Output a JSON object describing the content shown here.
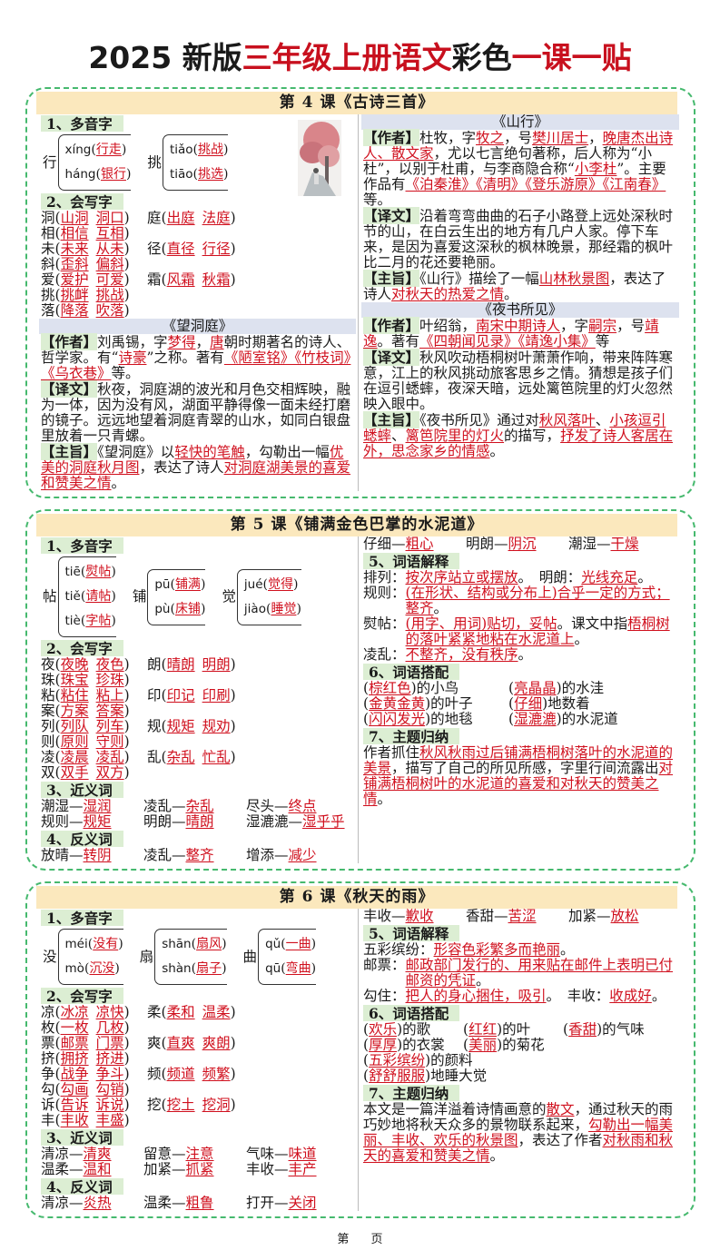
{
  "title": {
    "parts": [
      {
        "text": "2025 新版",
        "red": false
      },
      {
        "text": "三年级上册语文",
        "red": true
      },
      {
        "text": "彩色",
        "red": false
      },
      {
        "text": "一课一贴",
        "red": true
      }
    ]
  },
  "colors": {
    "accent_red": "#d0101e",
    "border_green": "#46b96e",
    "header_yellow": "#fbe8bd",
    "label_green": "#dceed3",
    "poem_bar_blue": "#dde2ef"
  },
  "lessons": [
    {
      "header": "第 4 课《古诗三首》",
      "image": "autumn-maple-painting",
      "left": [
        {
          "type": "h",
          "text": "1、多音字"
        },
        {
          "type": "poly",
          "groups": [
            {
              "char": "行",
              "items": [
                {
                  "py": "xíng",
                  "w": "行走"
                },
                {
                  "py": "háng",
                  "w": "银行"
                }
              ]
            },
            {
              "char": "挑",
              "items": [
                {
                  "py": "tiǎo",
                  "w": "挑战"
                },
                {
                  "py": "tiāo",
                  "w": "挑选"
                }
              ]
            }
          ]
        },
        {
          "type": "h",
          "text": "2、会写字"
        },
        {
          "type": "grid",
          "rows": [
            [
              [
                "洞",
                "山洞",
                "洞口"
              ],
              [
                "庭",
                "出庭",
                "法庭"
              ],
              [
                "相",
                "相信",
                "互相"
              ]
            ],
            [
              [
                "未",
                "未来",
                "从未"
              ],
              [
                "径",
                "直径",
                "行径"
              ],
              [
                "斜",
                "歪斜",
                "偏斜"
              ]
            ],
            [
              [
                "爱",
                "爱护",
                "可爱"
              ],
              [
                "霜",
                "风霜",
                "秋霜"
              ],
              [
                "挑",
                "挑衅",
                "挑战"
              ]
            ],
            [
              [
                "落",
                "降落",
                "吹落"
              ]
            ]
          ]
        },
        {
          "type": "poem",
          "text": "《望洞庭》"
        },
        {
          "type": "tagpara",
          "tag": "【作者】",
          "segs": [
            "刘禹锡，字",
            "梦得",
            "，",
            "唐",
            "朝时期著名的诗人、哲学家。有“",
            "诗豪",
            "”之称。著有",
            "《陋室铭》《竹枝词》《乌衣巷》",
            "等。"
          ]
        },
        {
          "type": "tagpara",
          "tag": "【译文】",
          "segs": [
            "秋夜，洞庭湖的波光和月色交相辉映，融为一体，因为没有风，湖面平静得像一面未经打磨的镜子。远远地望着洞庭青翠的山水，如同白银盘里放着一只青螺。"
          ]
        },
        {
          "type": "tagpara",
          "tag": "【主旨】",
          "segs": [
            "《望洞庭》以",
            "轻快的笔触",
            "，勾勒出一幅",
            "优美的洞庭秋月图",
            "，表达了诗人",
            "对洞庭湖美景的喜爱和赞美之情",
            "。"
          ]
        }
      ],
      "right": [
        {
          "type": "poem",
          "text": "《山行》"
        },
        {
          "type": "tagpara",
          "tag": "【作者】",
          "segs": [
            "杜牧，字",
            "牧之",
            "，号",
            "樊川居士",
            "，",
            "晚唐杰出诗人、散文家",
            "，尤以七言绝句著称，后人称为“小杜”，以别于杜甫，与李商隐合称“",
            "小李杜",
            "”。主要作品有",
            "《泊秦淮》《清明》《登乐游原》《江南春》",
            "等。"
          ]
        },
        {
          "type": "tagpara",
          "tag": "【译文】",
          "segs": [
            "沿着弯弯曲曲的石子小路登上远处深秋时节的山，在白云生出的地方有几户人家。停下车来，是因为喜爱这深秋的枫林晚景，那经霜的枫叶比二月的花还要艳丽。"
          ]
        },
        {
          "type": "tagpara",
          "tag": "【主旨】",
          "segs": [
            "《山行》描绘了一幅",
            "山林秋景图",
            "，表达了诗人",
            "对秋天的热爱之情",
            "。"
          ]
        },
        {
          "type": "poem",
          "text": "《夜书所见》"
        },
        {
          "type": "tagpara",
          "tag": "【作者】",
          "segs": [
            "叶绍翁，",
            "南宋中期诗人",
            "，字",
            "嗣宗",
            "，号",
            "靖逸",
            "。著有",
            "《四朝闻见录》《靖逸小集》",
            "等"
          ]
        },
        {
          "type": "tagpara",
          "tag": "【译文】",
          "segs": [
            "秋风吹动梧桐树叶萧萧作响，带来阵阵寒意，江上的秋风挑动旅客思乡之情。猜想是孩子们在逗引蟋蟀，夜深天暗，远处篱笆院里的灯火忽然映入眼中。"
          ]
        },
        {
          "type": "tagpara",
          "tag": "【主旨】",
          "segs": [
            "《夜书所见》通过对",
            "秋风落叶",
            "、",
            "小孩逗引蟋蟀",
            "、",
            "篱笆院里的灯火",
            "的描写，",
            "抒发了诗人客居在外，思念家乡的情感",
            "。"
          ]
        }
      ]
    },
    {
      "header": "第 5 课《铺满金色巴掌的水泥道》",
      "left": [
        {
          "type": "h",
          "text": "1、多音字"
        },
        {
          "type": "poly",
          "groups": [
            {
              "char": "帖",
              "items": [
                {
                  "py": "tiē",
                  "w": "熨帖"
                },
                {
                  "py": "tiě",
                  "w": "请帖"
                },
                {
                  "py": "tiè",
                  "w": "字帖"
                }
              ]
            },
            {
              "char": "铺",
              "items": [
                {
                  "py": "pū",
                  "w": "铺满"
                },
                {
                  "py": "pù",
                  "w": "床铺"
                }
              ]
            },
            {
              "char": "觉",
              "items": [
                {
                  "py": "jué",
                  "w": "觉得"
                },
                {
                  "py": "jiào",
                  "w": "睡觉"
                }
              ]
            }
          ]
        },
        {
          "type": "h",
          "text": "2、会写字"
        },
        {
          "type": "grid",
          "rows": [
            [
              [
                "夜",
                "夜晚",
                "夜色"
              ],
              [
                "朗",
                "晴朗",
                "明朗"
              ],
              [
                "珠",
                "珠宝",
                "珍珠"
              ]
            ],
            [
              [
                "粘",
                "粘住",
                "粘上"
              ],
              [
                "印",
                "印记",
                "印刷"
              ],
              [
                "案",
                "方案",
                "答案"
              ]
            ],
            [
              [
                "列",
                "列队",
                "列车"
              ],
              [
                "规",
                "规矩",
                "规劝"
              ],
              [
                "则",
                "原则",
                "守则"
              ]
            ],
            [
              [
                "凌",
                "凌晨",
                "凌乱"
              ],
              [
                "乱",
                "杂乱",
                "忙乱"
              ],
              [
                "双",
                "双手",
                "双方"
              ]
            ]
          ]
        },
        {
          "type": "h",
          "text": "3、近义词"
        },
        {
          "type": "syn",
          "rows": [
            [
              [
                "潮湿",
                "湿润"
              ],
              [
                "凌乱",
                "杂乱"
              ],
              [
                "尽头",
                "终点"
              ]
            ],
            [
              [
                "规则",
                "规矩"
              ],
              [
                "明朗",
                "晴朗"
              ],
              [
                "湿漉漉",
                "湿乎乎"
              ]
            ]
          ]
        },
        {
          "type": "h",
          "text": "4、反义词"
        },
        {
          "type": "syn",
          "rows": [
            [
              [
                "放晴",
                "转阴"
              ],
              [
                "凌乱",
                "整齐"
              ],
              [
                "增添",
                "减少"
              ]
            ]
          ]
        }
      ],
      "right": [
        {
          "type": "syn",
          "rows": [
            [
              [
                "仔细",
                "粗心"
              ],
              [
                "明朗",
                "阴沉"
              ],
              [
                "潮湿",
                "干燥"
              ]
            ]
          ]
        },
        {
          "type": "h",
          "text": "5、词语解释"
        },
        {
          "type": "def",
          "term": "排列：",
          "segs": [
            "",
            "按次序站立或摆放",
            "。　明朗：",
            "光线充足",
            "。"
          ]
        },
        {
          "type": "def",
          "term": "规则：",
          "segs": [
            "",
            "(在形状、结构或分布上)合乎一定的方式；整齐",
            "。"
          ]
        },
        {
          "type": "def",
          "term": "熨帖：",
          "segs": [
            "",
            "(用字、用词)贴切，妥帖",
            "。课文中指",
            "梧桐树的落叶紧紧地粘在水泥道上",
            "。"
          ]
        },
        {
          "type": "def",
          "term": "凌乱：",
          "segs": [
            "",
            "不整齐，没有秩序",
            "。"
          ]
        },
        {
          "type": "h",
          "text": "6、词语搭配"
        },
        {
          "type": "coll",
          "rows": [
            [
              [
                "棕红色",
                "的小鸟"
              ],
              [
                "亮晶晶",
                "的水洼"
              ]
            ],
            [
              [
                "金黄金黄",
                "的叶子"
              ],
              [
                "仔细",
                "地数着"
              ]
            ],
            [
              [
                "闪闪发光",
                "的地毯"
              ],
              [
                "湿漉漉",
                "的水泥道"
              ]
            ]
          ]
        },
        {
          "type": "h",
          "text": "7、主题归纳"
        },
        {
          "type": "para",
          "segs": [
            "作者抓住",
            "秋风秋雨过后铺满梧桐树落叶的水泥道的美景",
            "，描写了自己的所见所感，字里行间流露出",
            "对铺满梧桐树叶的水泥道的喜爱和对秋天的赞美之情",
            "。"
          ]
        }
      ]
    },
    {
      "header": "第 6 课《秋天的雨》",
      "left": [
        {
          "type": "h",
          "text": "1、多音字"
        },
        {
          "type": "poly",
          "groups": [
            {
              "char": "没",
              "items": [
                {
                  "py": "méi",
                  "w": "没有"
                },
                {
                  "py": "mò",
                  "w": "沉没"
                }
              ]
            },
            {
              "char": "扇",
              "items": [
                {
                  "py": "shān",
                  "w": "扇风"
                },
                {
                  "py": "shàn",
                  "w": "扇子"
                }
              ]
            },
            {
              "char": "曲",
              "items": [
                {
                  "py": "qǔ",
                  "w": "一曲"
                },
                {
                  "py": "qū",
                  "w": "弯曲"
                }
              ]
            }
          ]
        },
        {
          "type": "h",
          "text": "2、会写字"
        },
        {
          "type": "grid",
          "rows": [
            [
              [
                "凉",
                "冰凉",
                "凉快"
              ],
              [
                "柔",
                "柔和",
                "温柔"
              ],
              [
                "枚",
                "一枚",
                "几枚"
              ]
            ],
            [
              [
                "票",
                "邮票",
                "门票"
              ],
              [
                "爽",
                "直爽",
                "爽朗"
              ],
              [
                "挤",
                "拥挤",
                "挤进"
              ]
            ],
            [
              [
                "争",
                "战争",
                "争斗"
              ],
              [
                "频",
                "频道",
                "频繁"
              ],
              [
                "勾",
                "勾画",
                "勾销"
              ]
            ],
            [
              [
                "诉",
                "告诉",
                "诉说"
              ],
              [
                "挖",
                "挖土",
                "挖洞"
              ],
              [
                "丰",
                "丰收",
                "丰盛"
              ]
            ]
          ]
        },
        {
          "type": "h",
          "text": "3、近义词"
        },
        {
          "type": "syn",
          "rows": [
            [
              [
                "清凉",
                "清爽"
              ],
              [
                "留意",
                "注意"
              ],
              [
                "气味",
                "味道"
              ]
            ],
            [
              [
                "温柔",
                "温和"
              ],
              [
                "加紧",
                "抓紧"
              ],
              [
                "丰收",
                "丰产"
              ]
            ]
          ]
        },
        {
          "type": "h",
          "text": "4、反义词"
        },
        {
          "type": "syn",
          "rows": [
            [
              [
                "清凉",
                "炎热"
              ],
              [
                "温柔",
                "粗鲁"
              ],
              [
                "打开",
                "关闭"
              ]
            ]
          ]
        }
      ],
      "right": [
        {
          "type": "syn",
          "rows": [
            [
              [
                "丰收",
                "歉收"
              ],
              [
                "香甜",
                "苦涩"
              ],
              [
                "加紧",
                "放松"
              ]
            ]
          ]
        },
        {
          "type": "h",
          "text": "5、词语解释"
        },
        {
          "type": "def",
          "term": "五彩缤纷：",
          "segs": [
            "",
            "形容色彩繁多而艳丽",
            "。"
          ]
        },
        {
          "type": "def",
          "term": "邮票：",
          "segs": [
            "",
            "邮政部门发行的、用来贴在邮件上表明已付邮资的凭证",
            "。"
          ]
        },
        {
          "type": "def",
          "term": "勾住：",
          "segs": [
            "",
            "把人的身心捆住，吸引",
            "。　丰收：",
            "收成好",
            "。"
          ]
        },
        {
          "type": "h",
          "text": "6、词语搭配"
        },
        {
          "type": "coll",
          "three": true,
          "rows": [
            [
              [
                "欢乐",
                "的歌"
              ],
              [
                "红红",
                "的叶"
              ],
              [
                "香甜",
                "的气味"
              ]
            ],
            [
              [
                "厚厚",
                "的衣裳"
              ],
              [
                "美丽",
                "的菊花"
              ],
              [
                "五彩缤纷",
                "的颜料"
              ]
            ],
            [
              [
                "舒舒服服",
                "地睡大觉"
              ]
            ]
          ]
        },
        {
          "type": "h",
          "text": "7、主题归纳"
        },
        {
          "type": "para",
          "segs": [
            "本文是一篇洋溢着诗情画意的",
            "散文",
            "，通过秋天的雨巧妙地将秋天众多的景物联系起来，",
            "勾勒出一幅美丽、丰收、欢乐的秋景图",
            "，表达了作者",
            "对秋雨和秋天的喜爱和赞美之情",
            "。"
          ]
        }
      ]
    }
  ],
  "footer": "第 页"
}
